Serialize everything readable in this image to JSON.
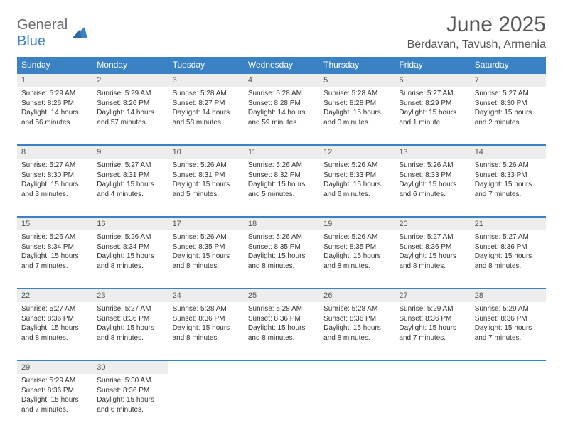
{
  "logo": {
    "part1": "General",
    "part2": "Blue"
  },
  "title": "June 2025",
  "location": "Berdavan, Tavush, Armenia",
  "colors": {
    "header_bg": "#3a82c4",
    "header_text": "#ffffff",
    "daynum_bg": "#ededed",
    "border": "#3a82c4",
    "text": "#333333",
    "title_text": "#555555"
  },
  "typography": {
    "title_fontsize": 30,
    "location_fontsize": 16,
    "header_fontsize": 12,
    "cell_fontsize": 10
  },
  "weekdays": [
    "Sunday",
    "Monday",
    "Tuesday",
    "Wednesday",
    "Thursday",
    "Friday",
    "Saturday"
  ],
  "weeks": [
    [
      {
        "day": 1,
        "sunrise": "5:29 AM",
        "sunset": "8:26 PM",
        "daylight": "14 hours and 56 minutes."
      },
      {
        "day": 2,
        "sunrise": "5:29 AM",
        "sunset": "8:26 PM",
        "daylight": "14 hours and 57 minutes."
      },
      {
        "day": 3,
        "sunrise": "5:28 AM",
        "sunset": "8:27 PM",
        "daylight": "14 hours and 58 minutes."
      },
      {
        "day": 4,
        "sunrise": "5:28 AM",
        "sunset": "8:28 PM",
        "daylight": "14 hours and 59 minutes."
      },
      {
        "day": 5,
        "sunrise": "5:28 AM",
        "sunset": "8:28 PM",
        "daylight": "15 hours and 0 minutes."
      },
      {
        "day": 6,
        "sunrise": "5:27 AM",
        "sunset": "8:29 PM",
        "daylight": "15 hours and 1 minute."
      },
      {
        "day": 7,
        "sunrise": "5:27 AM",
        "sunset": "8:30 PM",
        "daylight": "15 hours and 2 minutes."
      }
    ],
    [
      {
        "day": 8,
        "sunrise": "5:27 AM",
        "sunset": "8:30 PM",
        "daylight": "15 hours and 3 minutes."
      },
      {
        "day": 9,
        "sunrise": "5:27 AM",
        "sunset": "8:31 PM",
        "daylight": "15 hours and 4 minutes."
      },
      {
        "day": 10,
        "sunrise": "5:26 AM",
        "sunset": "8:31 PM",
        "daylight": "15 hours and 5 minutes."
      },
      {
        "day": 11,
        "sunrise": "5:26 AM",
        "sunset": "8:32 PM",
        "daylight": "15 hours and 5 minutes."
      },
      {
        "day": 12,
        "sunrise": "5:26 AM",
        "sunset": "8:33 PM",
        "daylight": "15 hours and 6 minutes."
      },
      {
        "day": 13,
        "sunrise": "5:26 AM",
        "sunset": "8:33 PM",
        "daylight": "15 hours and 6 minutes."
      },
      {
        "day": 14,
        "sunrise": "5:26 AM",
        "sunset": "8:33 PM",
        "daylight": "15 hours and 7 minutes."
      }
    ],
    [
      {
        "day": 15,
        "sunrise": "5:26 AM",
        "sunset": "8:34 PM",
        "daylight": "15 hours and 7 minutes."
      },
      {
        "day": 16,
        "sunrise": "5:26 AM",
        "sunset": "8:34 PM",
        "daylight": "15 hours and 8 minutes."
      },
      {
        "day": 17,
        "sunrise": "5:26 AM",
        "sunset": "8:35 PM",
        "daylight": "15 hours and 8 minutes."
      },
      {
        "day": 18,
        "sunrise": "5:26 AM",
        "sunset": "8:35 PM",
        "daylight": "15 hours and 8 minutes."
      },
      {
        "day": 19,
        "sunrise": "5:26 AM",
        "sunset": "8:35 PM",
        "daylight": "15 hours and 8 minutes."
      },
      {
        "day": 20,
        "sunrise": "5:27 AM",
        "sunset": "8:36 PM",
        "daylight": "15 hours and 8 minutes."
      },
      {
        "day": 21,
        "sunrise": "5:27 AM",
        "sunset": "8:36 PM",
        "daylight": "15 hours and 8 minutes."
      }
    ],
    [
      {
        "day": 22,
        "sunrise": "5:27 AM",
        "sunset": "8:36 PM",
        "daylight": "15 hours and 8 minutes."
      },
      {
        "day": 23,
        "sunrise": "5:27 AM",
        "sunset": "8:36 PM",
        "daylight": "15 hours and 8 minutes."
      },
      {
        "day": 24,
        "sunrise": "5:28 AM",
        "sunset": "8:36 PM",
        "daylight": "15 hours and 8 minutes."
      },
      {
        "day": 25,
        "sunrise": "5:28 AM",
        "sunset": "8:36 PM",
        "daylight": "15 hours and 8 minutes."
      },
      {
        "day": 26,
        "sunrise": "5:28 AM",
        "sunset": "8:36 PM",
        "daylight": "15 hours and 8 minutes."
      },
      {
        "day": 27,
        "sunrise": "5:29 AM",
        "sunset": "8:36 PM",
        "daylight": "15 hours and 7 minutes."
      },
      {
        "day": 28,
        "sunrise": "5:29 AM",
        "sunset": "8:36 PM",
        "daylight": "15 hours and 7 minutes."
      }
    ],
    [
      {
        "day": 29,
        "sunrise": "5:29 AM",
        "sunset": "8:36 PM",
        "daylight": "15 hours and 7 minutes."
      },
      {
        "day": 30,
        "sunrise": "5:30 AM",
        "sunset": "8:36 PM",
        "daylight": "15 hours and 6 minutes."
      },
      null,
      null,
      null,
      null,
      null
    ]
  ],
  "labels": {
    "sunrise": "Sunrise:",
    "sunset": "Sunset:",
    "daylight": "Daylight:"
  }
}
